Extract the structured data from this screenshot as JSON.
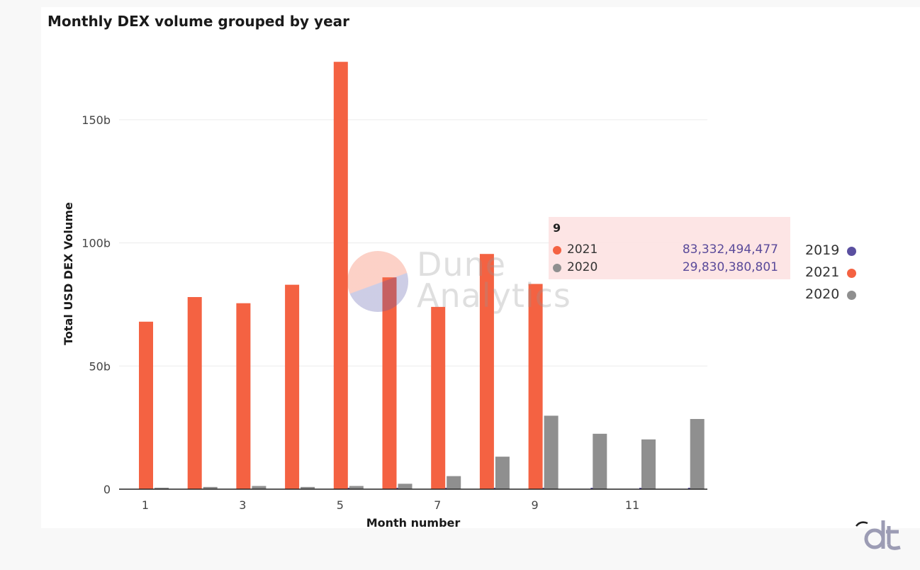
{
  "chart_data": {
    "type": "bar",
    "title": "Monthly DEX volume grouped by year",
    "xlabel": "Month number",
    "ylabel": "Total USD DEX Volume",
    "categories": [
      1,
      2,
      3,
      4,
      5,
      6,
      7,
      8,
      9,
      10,
      11,
      12
    ],
    "x_tick_labels": [
      "1",
      "3",
      "5",
      "7",
      "9",
      "11"
    ],
    "x_tick_values": [
      1,
      3,
      5,
      7,
      9,
      11
    ],
    "y_tick_labels": [
      "0",
      "50b",
      "100b",
      "150b"
    ],
    "y_tick_values": [
      0,
      50,
      100,
      150
    ],
    "y_unit": "billion USD",
    "ylim": [
      0,
      175
    ],
    "grid": true,
    "legend_position": "right",
    "series": [
      {
        "name": "2019",
        "color": "#5a4fa0",
        "values": [
          0,
          0,
          0,
          0,
          0.3,
          0.3,
          0.3,
          0.3,
          0.3,
          0.3,
          0.3,
          0.3
        ]
      },
      {
        "name": "2021",
        "color": "#f46242",
        "values": [
          68,
          78,
          75.5,
          83,
          173.5,
          86,
          74,
          95.5,
          83.33,
          0,
          0,
          0
        ]
      },
      {
        "name": "2020",
        "color": "#8f8f8f",
        "values": [
          0.6,
          0.9,
          1.3,
          0.9,
          1.3,
          2.2,
          5.3,
          13.2,
          29.83,
          22.5,
          20.2,
          28.5
        ]
      }
    ]
  },
  "tooltip": {
    "title": "9",
    "rows": [
      {
        "name": "2021",
        "value": "83,332,494,477",
        "color": "#f46242"
      },
      {
        "name": "2020",
        "value": "29,830,380,801",
        "color": "#8f8f8f"
      }
    ]
  },
  "watermark": {
    "line1": "Dune",
    "line2": "Analytics"
  },
  "legend": [
    {
      "label": "2019",
      "color": "#5a4fa0"
    },
    {
      "label": "2021",
      "color": "#f46242"
    },
    {
      "label": "2020",
      "color": "#8f8f8f"
    }
  ]
}
